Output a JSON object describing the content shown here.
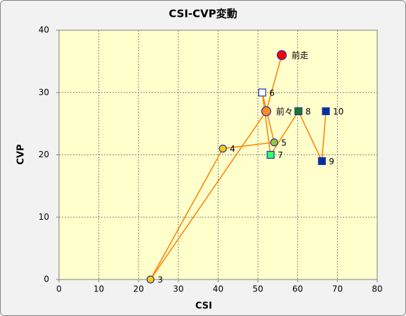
{
  "chart_data": {
    "type": "scatter",
    "title": "CSI-CVP変動",
    "x_label": "CSI",
    "y_label": "CVP",
    "xlim": [
      0,
      80
    ],
    "xticks": [
      0,
      10,
      20,
      30,
      40,
      50,
      60,
      70,
      80
    ],
    "ylim": [
      0,
      40
    ],
    "yticks": [
      0,
      10,
      20,
      30,
      40
    ],
    "grid": true,
    "line_color": "#ff8000",
    "point_labels": [
      "10",
      "9",
      "8",
      "7",
      "6",
      "5",
      "4",
      "3",
      "前々",
      "前走"
    ],
    "x": [
      67.1,
      66.1,
      60.2,
      53.2,
      51.1,
      54.1,
      41.2,
      23.0,
      52.1,
      56.0
    ],
    "values": [
      27,
      19,
      27,
      20,
      30,
      22,
      21,
      0,
      27,
      36
    ],
    "markers": [
      "square",
      "square",
      "square",
      "square",
      "square",
      "circle",
      "circle",
      "circle",
      "large-circle",
      "large-circle"
    ],
    "colors": [
      "#003399",
      "#003399",
      "#1a7a1a",
      "#33ff66",
      "#ffffff",
      "#99cc33",
      "#ffcc00",
      "#ffcc00",
      "#ff8c1a",
      "#ff0000"
    ]
  }
}
